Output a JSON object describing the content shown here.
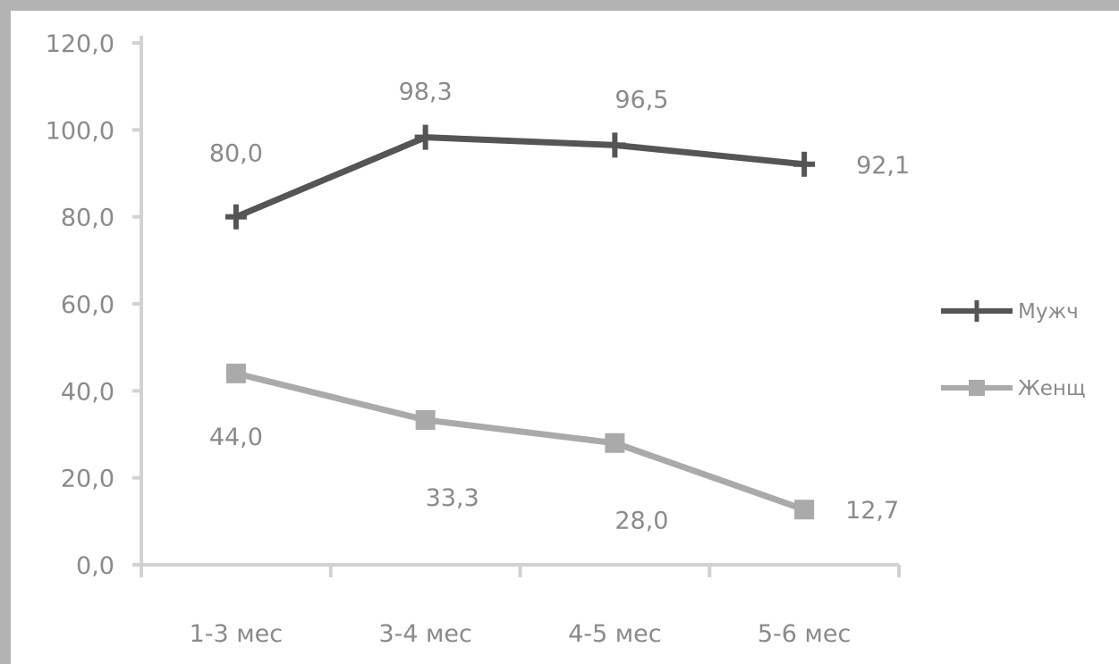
{
  "chart_data": {
    "type": "line",
    "title": "",
    "xlabel": "",
    "ylabel": "",
    "categories": [
      "1-3 мес",
      "3-4 мес",
      "4-5 мес",
      "5-6 мес"
    ],
    "ylim": [
      0,
      120
    ],
    "yticks": [
      "0,0",
      "20,0",
      "40,0",
      "60,0",
      "80,0",
      "100,0",
      "120,0"
    ],
    "grid": false,
    "legend_position": "right",
    "series": [
      {
        "name": "Мужч",
        "values": [
          80.0,
          98.3,
          96.5,
          92.1
        ],
        "labels": [
          "80,0",
          "98,3",
          "96,5",
          "92,1"
        ],
        "color": "#555555",
        "marker": "plus"
      },
      {
        "name": "Женщ",
        "values": [
          44.0,
          33.3,
          28.0,
          12.7
        ],
        "labels": [
          "44,0",
          "33,3",
          "28,0",
          "12,7"
        ],
        "color": "#aaaaaa",
        "marker": "square"
      }
    ]
  }
}
